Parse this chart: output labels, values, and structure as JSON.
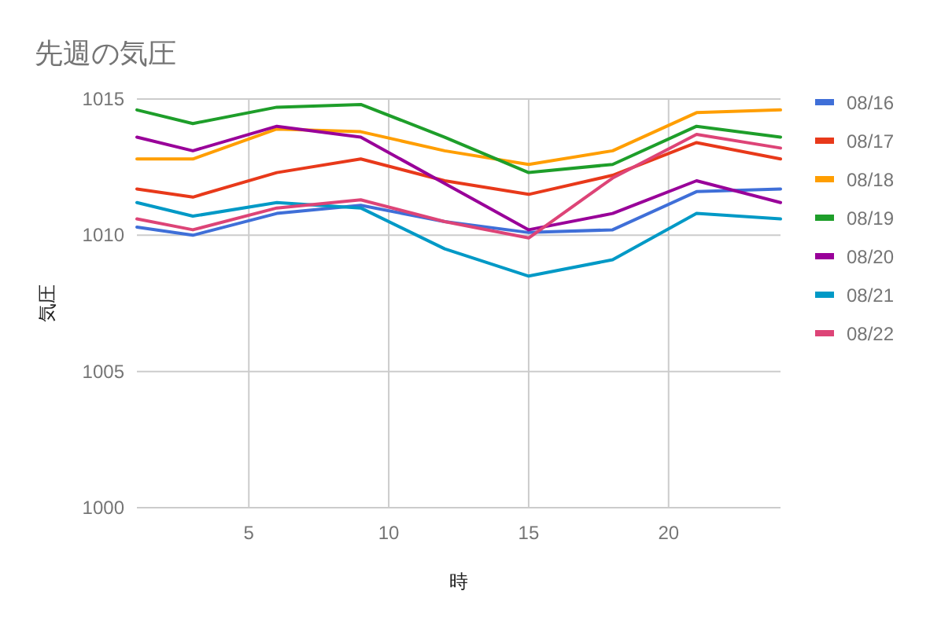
{
  "chart_data": {
    "type": "line",
    "title": "先週の気圧",
    "xlabel": "時",
    "ylabel": "気圧",
    "x": [
      1,
      3,
      6,
      9,
      12,
      15,
      18,
      21,
      24
    ],
    "xlim": [
      1,
      24
    ],
    "xticks": [
      5,
      10,
      15,
      20
    ],
    "ylim": [
      1000,
      1015
    ],
    "yticks": [
      1000,
      1005,
      1010,
      1015
    ],
    "grid": true,
    "legend": "right",
    "series": [
      {
        "name": "08/16",
        "color": "#3f6fd8",
        "values": [
          1010.3,
          1010.0,
          1010.8,
          1011.1,
          1010.5,
          1010.1,
          1010.2,
          1011.6,
          1011.7
        ]
      },
      {
        "name": "08/17",
        "color": "#e8391a",
        "values": [
          1011.7,
          1011.4,
          1012.3,
          1012.8,
          1012.0,
          1011.5,
          1012.2,
          1013.4,
          1012.8
        ]
      },
      {
        "name": "08/18",
        "color": "#ff9e00",
        "values": [
          1012.8,
          1012.8,
          1013.9,
          1013.8,
          1013.1,
          1012.6,
          1013.1,
          1014.5,
          1014.6
        ]
      },
      {
        "name": "08/19",
        "color": "#1e9e2a",
        "values": [
          1014.6,
          1014.1,
          1014.7,
          1014.8,
          1013.6,
          1012.3,
          1012.6,
          1014.0,
          1013.6
        ]
      },
      {
        "name": "08/20",
        "color": "#990099",
        "values": [
          1013.6,
          1013.1,
          1014.0,
          1013.6,
          1011.9,
          1010.2,
          1010.8,
          1012.0,
          1011.2
        ]
      },
      {
        "name": "08/21",
        "color": "#0099c6",
        "values": [
          1011.2,
          1010.7,
          1011.2,
          1011.0,
          1009.5,
          1008.5,
          1009.1,
          1010.8,
          1010.6
        ]
      },
      {
        "name": "08/22",
        "color": "#dd4477",
        "values": [
          1010.6,
          1010.2,
          1011.0,
          1011.3,
          1010.5,
          1009.9,
          1012.1,
          1013.7,
          1013.2
        ]
      }
    ]
  }
}
